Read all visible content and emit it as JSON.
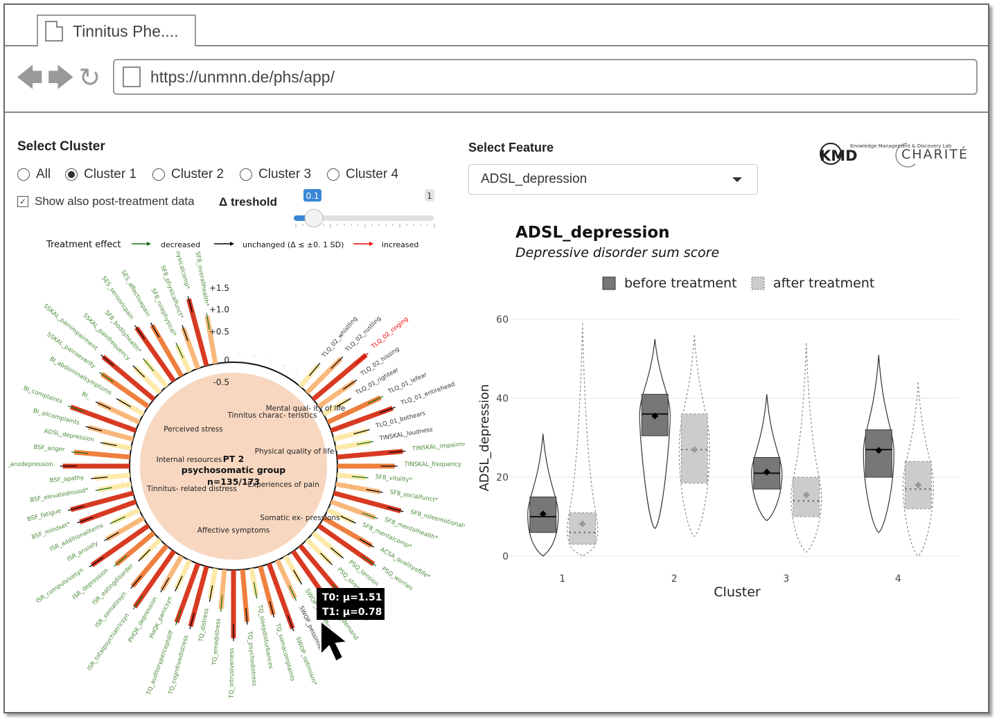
{
  "browser": {
    "tab_title": "Tinnitus Phe....",
    "url": "https://unmnn.de/phs/app/"
  },
  "left": {
    "cluster_label": "Select Cluster",
    "clusters": [
      "All",
      "Cluster 1",
      "Cluster 2",
      "Cluster 3",
      "Cluster 4"
    ],
    "selected_cluster": "Cluster 1",
    "post_treatment_label": "Show also post-treatment data",
    "threshold_label": "Δ treshold",
    "threshold_value": "0.1",
    "threshold_max": "1",
    "legend": {
      "title": "Treatment effect",
      "decreased": "decreased",
      "unchanged": "unchanged (Δ ≤ ±0. 1 SD)",
      "increased": "increased"
    }
  },
  "radial": {
    "scale": [
      "+1.5",
      "+1.0",
      "+0.5",
      "0",
      "-0.5"
    ],
    "center": {
      "line1": "PT 2",
      "line2": "psychosomatic group",
      "line3": "n=135/173"
    },
    "domains": [
      "Mental qual- ity of life",
      "Tinnitus charac- teristics",
      "Perceived stress",
      "Physical quality of life",
      "Internal resources",
      "Experiences of pain",
      "Tinnitus- related distress",
      "Somatic ex- pressions",
      "Affective symptoms"
    ],
    "tooltip": {
      "t0": "T0: μ=1.51",
      "t1": "T1: μ=0.78"
    },
    "features": [
      "SF8_overallhealth*",
      "SF8_physicalcomp*",
      "SF8_physicalfunct*",
      "SF8_rolephysical*",
      "SES_affectivepain",
      "SES_sensoricpain",
      "SF8_bodilyhealth*",
      "SSKAL_painfrequency",
      "SSKAL_painimpairment",
      "SSKAL_painseverity",
      "BI_abdominalsymptoms",
      "BI_",
      "BI_complaints",
      "BI_allcomplaints",
      "ADSL_depression",
      "BSF_anger",
      "BSF_anxdepression",
      "BSF_apathy",
      "BSF_elevatedmood*",
      "BSF_fatigue",
      "BSF_mindset*",
      "ISR_additionalitems",
      "ISR_anxiety",
      "ISR_compulsivesyn",
      "ISR_depression",
      "ISR_eatingdisorder",
      "ISR_somatosyn",
      "ISR_totalpsychiatricsyn",
      "PHQK_depression",
      "PHQK_panicsyn",
      "TQ_auditoryperceptdiff",
      "TQ_cognitivedistress",
      "TQ_distress",
      "TQ_emodistress",
      "TQ_intrusiveness",
      "TQ_psychodistress",
      "TQ_sleepdisturbances",
      "TQ_somacomplaints",
      "SWOP_optimism*",
      "SWOP_pessimism",
      "SWOP_selfefficacy*",
      "PSQ_demand",
      "PSQ_joy*",
      "PSQ_stress",
      "PSQ_tension",
      "PSQ_worries",
      "ACSA_qualityoflife*",
      "SF8_mentalcomp*",
      "SF8_mentalhealth*",
      "SF8_roleemotional*",
      "SF8_socialfunct*",
      "SF8_vitality*",
      "TINSKAL_frequency",
      "TINSKAL_impairment",
      "TINSKAL_loudness",
      "TLQ_01_bothears",
      "TLQ_01_entirehead",
      "TLQ_01_lefear",
      "TLQ_01_rightear",
      "TLQ_02_hissing",
      "TLQ_02_ringing",
      "TLQ_02_rustling",
      "TLQ_02_whistling"
    ]
  },
  "right": {
    "feature_label": "Select Feature",
    "selected_feature": "ADSL_depression",
    "logo_kmd": "KMD",
    "logo_kmd_text": "Knowledge Management & Discovery Lab",
    "logo_charite": "CHARITÉ"
  },
  "chart_data": {
    "type": "violin-box",
    "title": "ADSL_depression",
    "subtitle": "Depressive disorder sum score",
    "xlabel": "Cluster",
    "ylabel": "ADSL_depression",
    "ylim": [
      0,
      60
    ],
    "yticks": [
      0,
      20,
      40,
      60
    ],
    "categories": [
      "1",
      "2",
      "3",
      "4"
    ],
    "legend": [
      "before treatment",
      "after treatment"
    ],
    "series": [
      {
        "name": "before treatment",
        "q1": [
          6,
          30.5,
          17,
          20
        ],
        "median": [
          10,
          36,
          21,
          27
        ],
        "q3": [
          15,
          41,
          25,
          32
        ],
        "mean": [
          10.7,
          35.5,
          21.3,
          26.8
        ],
        "min": [
          0,
          7,
          9,
          6
        ],
        "max": [
          31,
          55,
          41,
          51
        ]
      },
      {
        "name": "after treatment",
        "q1": [
          3,
          18.5,
          10,
          12
        ],
        "median": [
          6,
          27,
          14,
          17
        ],
        "q3": [
          11,
          36,
          20,
          24
        ],
        "mean": [
          8.2,
          27,
          15.5,
          18
        ],
        "min": [
          0,
          5,
          1,
          0
        ],
        "max": [
          59,
          56,
          54,
          44
        ]
      }
    ]
  },
  "colors": {
    "decreased": "#1a6e1a",
    "unchanged": "#000000",
    "increased": "#e00000",
    "center_fill": "#f7d7c0",
    "before_fill": "#777777",
    "after_fill": "#cccccc",
    "slider_blue": "#3a87d6"
  }
}
